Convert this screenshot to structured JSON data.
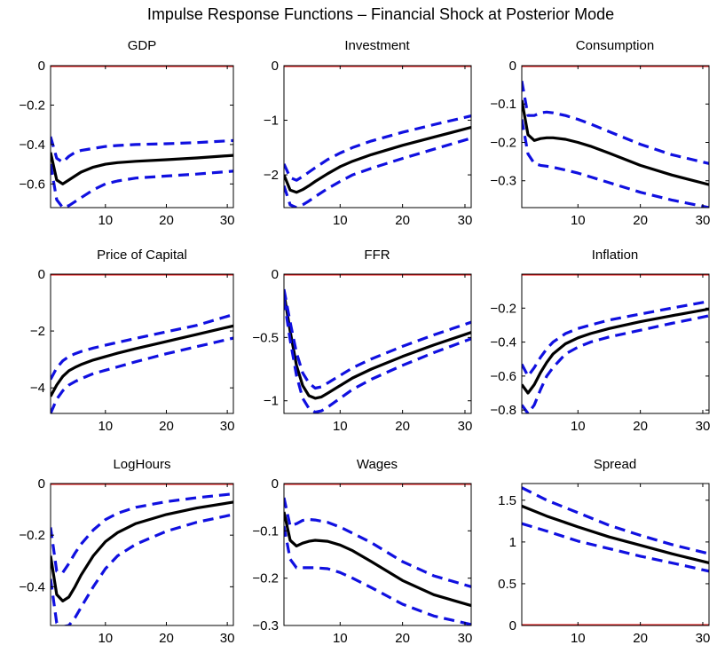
{
  "figure_title": "Impulse Response Functions –  Financial Shock at Posterior Mode",
  "colors": {
    "median": "#000000",
    "bands": "#1010e0",
    "zero_line": "#e81010"
  },
  "chart_data": [
    {
      "type": "line",
      "title": "GDP",
      "xlim": [
        1,
        31
      ],
      "ylim": [
        -0.72,
        0
      ],
      "xticks": [
        10,
        20,
        30
      ],
      "yticks": [
        0,
        -0.2,
        -0.4,
        -0.6
      ],
      "xtick_labels": [
        "10",
        "20",
        "30"
      ],
      "ytick_labels": [
        "0",
        "−0.2",
        "−0.4",
        "−0.6"
      ],
      "zero_line": 0,
      "x": [
        1,
        2,
        3,
        4,
        5,
        6,
        8,
        10,
        12,
        15,
        20,
        25,
        31
      ],
      "series": [
        {
          "role": "median",
          "values": [
            -0.44,
            -0.58,
            -0.6,
            -0.58,
            -0.56,
            -0.54,
            -0.515,
            -0.5,
            -0.492,
            -0.485,
            -0.477,
            -0.468,
            -0.455
          ]
        },
        {
          "role": "upper",
          "values": [
            -0.36,
            -0.47,
            -0.49,
            -0.46,
            -0.44,
            -0.43,
            -0.42,
            -0.41,
            -0.405,
            -0.4,
            -0.396,
            -0.39,
            -0.38
          ]
        },
        {
          "role": "lower",
          "values": [
            -0.5,
            -0.68,
            -0.72,
            -0.71,
            -0.69,
            -0.67,
            -0.63,
            -0.6,
            -0.585,
            -0.57,
            -0.56,
            -0.55,
            -0.535
          ]
        }
      ]
    },
    {
      "type": "line",
      "title": "Investment",
      "xlim": [
        1,
        31
      ],
      "ylim": [
        -2.6,
        0
      ],
      "xticks": [
        10,
        20,
        30
      ],
      "yticks": [
        0,
        -1,
        -2
      ],
      "xtick_labels": [
        "10",
        "20",
        "30"
      ],
      "ytick_labels": [
        "0",
        "−1",
        "−2"
      ],
      "zero_line": 0,
      "x": [
        1,
        2,
        3,
        4,
        5,
        6,
        8,
        10,
        12,
        15,
        20,
        25,
        31
      ],
      "series": [
        {
          "role": "median",
          "values": [
            -2.0,
            -2.28,
            -2.32,
            -2.27,
            -2.2,
            -2.12,
            -1.98,
            -1.85,
            -1.75,
            -1.63,
            -1.46,
            -1.31,
            -1.13
          ]
        },
        {
          "role": "upper",
          "values": [
            -1.8,
            -2.05,
            -2.1,
            -2.03,
            -1.95,
            -1.87,
            -1.72,
            -1.6,
            -1.5,
            -1.38,
            -1.22,
            -1.08,
            -0.92
          ]
        },
        {
          "role": "lower",
          "values": [
            -2.2,
            -2.55,
            -2.6,
            -2.55,
            -2.48,
            -2.4,
            -2.25,
            -2.12,
            -2.0,
            -1.88,
            -1.7,
            -1.53,
            -1.33
          ]
        }
      ]
    },
    {
      "type": "line",
      "title": "Consumption",
      "xlim": [
        1,
        31
      ],
      "ylim": [
        -0.37,
        0
      ],
      "xticks": [
        10,
        20,
        30
      ],
      "yticks": [
        0,
        -0.1,
        -0.2,
        -0.3
      ],
      "xtick_labels": [
        "10",
        "20",
        "30"
      ],
      "ytick_labels": [
        "0",
        "−0.1",
        "−0.2",
        "−0.3"
      ],
      "zero_line": 0,
      "x": [
        1,
        2,
        3,
        4,
        5,
        6,
        8,
        10,
        12,
        15,
        20,
        25,
        31
      ],
      "series": [
        {
          "role": "median",
          "values": [
            -0.09,
            -0.18,
            -0.195,
            -0.19,
            -0.188,
            -0.188,
            -0.192,
            -0.2,
            -0.21,
            -0.228,
            -0.26,
            -0.285,
            -0.31
          ]
        },
        {
          "role": "upper",
          "values": [
            -0.04,
            -0.13,
            -0.13,
            -0.123,
            -0.121,
            -0.123,
            -0.13,
            -0.14,
            -0.152,
            -0.172,
            -0.205,
            -0.232,
            -0.255
          ]
        },
        {
          "role": "lower",
          "values": [
            -0.14,
            -0.23,
            -0.255,
            -0.26,
            -0.262,
            -0.265,
            -0.272,
            -0.28,
            -0.29,
            -0.305,
            -0.33,
            -0.35,
            -0.37
          ]
        }
      ]
    },
    {
      "type": "line",
      "title": "Price of Capital",
      "xlim": [
        1,
        31
      ],
      "ylim": [
        -4.9,
        0
      ],
      "xticks": [
        10,
        20,
        30
      ],
      "yticks": [
        0,
        -2,
        -4
      ],
      "xtick_labels": [
        "10",
        "20",
        "30"
      ],
      "ytick_labels": [
        "0",
        "−2",
        "−4"
      ],
      "zero_line": 0,
      "x": [
        1,
        2,
        3,
        4,
        5,
        6,
        8,
        10,
        12,
        15,
        20,
        25,
        31
      ],
      "series": [
        {
          "role": "median",
          "values": [
            -4.3,
            -3.9,
            -3.6,
            -3.4,
            -3.28,
            -3.18,
            -3.02,
            -2.9,
            -2.78,
            -2.62,
            -2.37,
            -2.12,
            -1.82
          ]
        },
        {
          "role": "upper",
          "values": [
            -3.7,
            -3.3,
            -3.05,
            -2.9,
            -2.8,
            -2.72,
            -2.6,
            -2.5,
            -2.4,
            -2.26,
            -2.03,
            -1.8,
            -1.42
          ]
        },
        {
          "role": "lower",
          "values": [
            -4.9,
            -4.4,
            -4.1,
            -3.9,
            -3.78,
            -3.68,
            -3.5,
            -3.38,
            -3.26,
            -3.08,
            -2.8,
            -2.55,
            -2.25
          ]
        }
      ]
    },
    {
      "type": "line",
      "title": "FFR",
      "xlim": [
        1,
        31
      ],
      "ylim": [
        -1.1,
        0
      ],
      "xticks": [
        10,
        20,
        30
      ],
      "yticks": [
        0,
        -0.5,
        -1
      ],
      "xtick_labels": [
        "10",
        "20",
        "30"
      ],
      "ytick_labels": [
        "0",
        "−0.5",
        "−1"
      ],
      "zero_line": 0,
      "x": [
        1,
        2,
        3,
        4,
        5,
        6,
        7,
        8,
        10,
        12,
        15,
        20,
        25,
        31
      ],
      "series": [
        {
          "role": "median",
          "values": [
            -0.15,
            -0.45,
            -0.72,
            -0.88,
            -0.96,
            -0.98,
            -0.97,
            -0.94,
            -0.88,
            -0.82,
            -0.75,
            -0.65,
            -0.56,
            -0.46
          ]
        },
        {
          "role": "upper",
          "values": [
            -0.12,
            -0.38,
            -0.62,
            -0.78,
            -0.86,
            -0.9,
            -0.89,
            -0.86,
            -0.8,
            -0.74,
            -0.67,
            -0.57,
            -0.48,
            -0.38
          ]
        },
        {
          "role": "lower",
          "values": [
            -0.2,
            -0.52,
            -0.8,
            -0.98,
            -1.06,
            -1.09,
            -1.08,
            -1.05,
            -0.98,
            -0.91,
            -0.83,
            -0.72,
            -0.62,
            -0.51
          ]
        }
      ]
    },
    {
      "type": "line",
      "title": "Inflation",
      "xlim": [
        1,
        31
      ],
      "ylim": [
        -0.82,
        0
      ],
      "xticks": [
        10,
        20,
        30
      ],
      "yticks": [
        -0.2,
        -0.4,
        -0.6,
        -0.8
      ],
      "xtick_labels": [
        "10",
        "20",
        "30"
      ],
      "ytick_labels": [
        "−0.2",
        "−0.4",
        "−0.6",
        "−0.8"
      ],
      "zero_line": 0,
      "x": [
        1,
        2,
        3,
        4,
        5,
        6,
        8,
        10,
        12,
        15,
        20,
        25,
        31
      ],
      "series": [
        {
          "role": "median",
          "values": [
            -0.65,
            -0.7,
            -0.65,
            -0.58,
            -0.52,
            -0.47,
            -0.41,
            -0.375,
            -0.35,
            -0.32,
            -0.28,
            -0.245,
            -0.205
          ]
        },
        {
          "role": "upper",
          "values": [
            -0.53,
            -0.6,
            -0.55,
            -0.49,
            -0.44,
            -0.4,
            -0.35,
            -0.32,
            -0.3,
            -0.27,
            -0.235,
            -0.2,
            -0.16
          ]
        },
        {
          "role": "lower",
          "values": [
            -0.77,
            -0.82,
            -0.77,
            -0.68,
            -0.6,
            -0.55,
            -0.47,
            -0.43,
            -0.4,
            -0.37,
            -0.33,
            -0.29,
            -0.245
          ]
        }
      ]
    },
    {
      "type": "line",
      "title": "LogHours",
      "xlim": [
        1,
        31
      ],
      "ylim": [
        -0.55,
        0
      ],
      "xticks": [
        10,
        20,
        30
      ],
      "yticks": [
        0,
        -0.2,
        -0.4
      ],
      "xtick_labels": [
        "10",
        "20",
        "30"
      ],
      "ytick_labels": [
        "0",
        "−0.2",
        "−0.4"
      ],
      "zero_line": 0,
      "x": [
        1,
        2,
        3,
        4,
        5,
        6,
        8,
        10,
        12,
        15,
        20,
        25,
        31
      ],
      "series": [
        {
          "role": "median",
          "values": [
            -0.28,
            -0.43,
            -0.455,
            -0.44,
            -0.4,
            -0.355,
            -0.28,
            -0.225,
            -0.19,
            -0.155,
            -0.12,
            -0.095,
            -0.072
          ]
        },
        {
          "role": "upper",
          "values": [
            -0.17,
            -0.34,
            -0.345,
            -0.31,
            -0.27,
            -0.235,
            -0.18,
            -0.14,
            -0.115,
            -0.092,
            -0.07,
            -0.055,
            -0.04
          ]
        },
        {
          "role": "lower",
          "values": [
            -0.37,
            -0.54,
            -0.555,
            -0.55,
            -0.52,
            -0.48,
            -0.4,
            -0.33,
            -0.28,
            -0.235,
            -0.185,
            -0.15,
            -0.12
          ]
        }
      ]
    },
    {
      "type": "line",
      "title": "Wages",
      "xlim": [
        1,
        31
      ],
      "ylim": [
        -0.3,
        0
      ],
      "xticks": [
        10,
        20,
        30
      ],
      "yticks": [
        0,
        -0.1,
        -0.2,
        -0.3
      ],
      "xtick_labels": [
        "10",
        "20",
        "30"
      ],
      "ytick_labels": [
        "0",
        "−0.1",
        "−0.2",
        "−0.3"
      ],
      "zero_line": 0,
      "x": [
        1,
        2,
        3,
        4,
        5,
        6,
        8,
        10,
        12,
        15,
        20,
        25,
        31
      ],
      "series": [
        {
          "role": "median",
          "values": [
            -0.06,
            -0.12,
            -0.132,
            -0.126,
            -0.122,
            -0.12,
            -0.122,
            -0.13,
            -0.142,
            -0.165,
            -0.205,
            -0.235,
            -0.258
          ]
        },
        {
          "role": "upper",
          "values": [
            -0.03,
            -0.09,
            -0.085,
            -0.078,
            -0.076,
            -0.077,
            -0.082,
            -0.092,
            -0.105,
            -0.125,
            -0.165,
            -0.195,
            -0.218
          ]
        },
        {
          "role": "lower",
          "values": [
            -0.09,
            -0.16,
            -0.178,
            -0.178,
            -0.178,
            -0.178,
            -0.18,
            -0.188,
            -0.2,
            -0.22,
            -0.255,
            -0.28,
            -0.298
          ]
        }
      ]
    },
    {
      "type": "line",
      "title": "Spread",
      "xlim": [
        1,
        31
      ],
      "ylim": [
        0,
        1.7
      ],
      "xticks": [
        10,
        20,
        30
      ],
      "yticks": [
        0,
        0.5,
        1,
        1.5
      ],
      "xtick_labels": [
        "10",
        "20",
        "30"
      ],
      "ytick_labels": [
        "0",
        "0.5",
        "1",
        "1.5"
      ],
      "zero_line": 0,
      "x": [
        1,
        5,
        10,
        15,
        20,
        25,
        31
      ],
      "series": [
        {
          "role": "median",
          "values": [
            1.43,
            1.31,
            1.18,
            1.06,
            0.96,
            0.86,
            0.75
          ]
        },
        {
          "role": "upper",
          "values": [
            1.65,
            1.5,
            1.35,
            1.2,
            1.08,
            0.97,
            0.86
          ]
        },
        {
          "role": "lower",
          "values": [
            1.22,
            1.13,
            1.01,
            0.92,
            0.83,
            0.75,
            0.65
          ]
        }
      ]
    }
  ]
}
